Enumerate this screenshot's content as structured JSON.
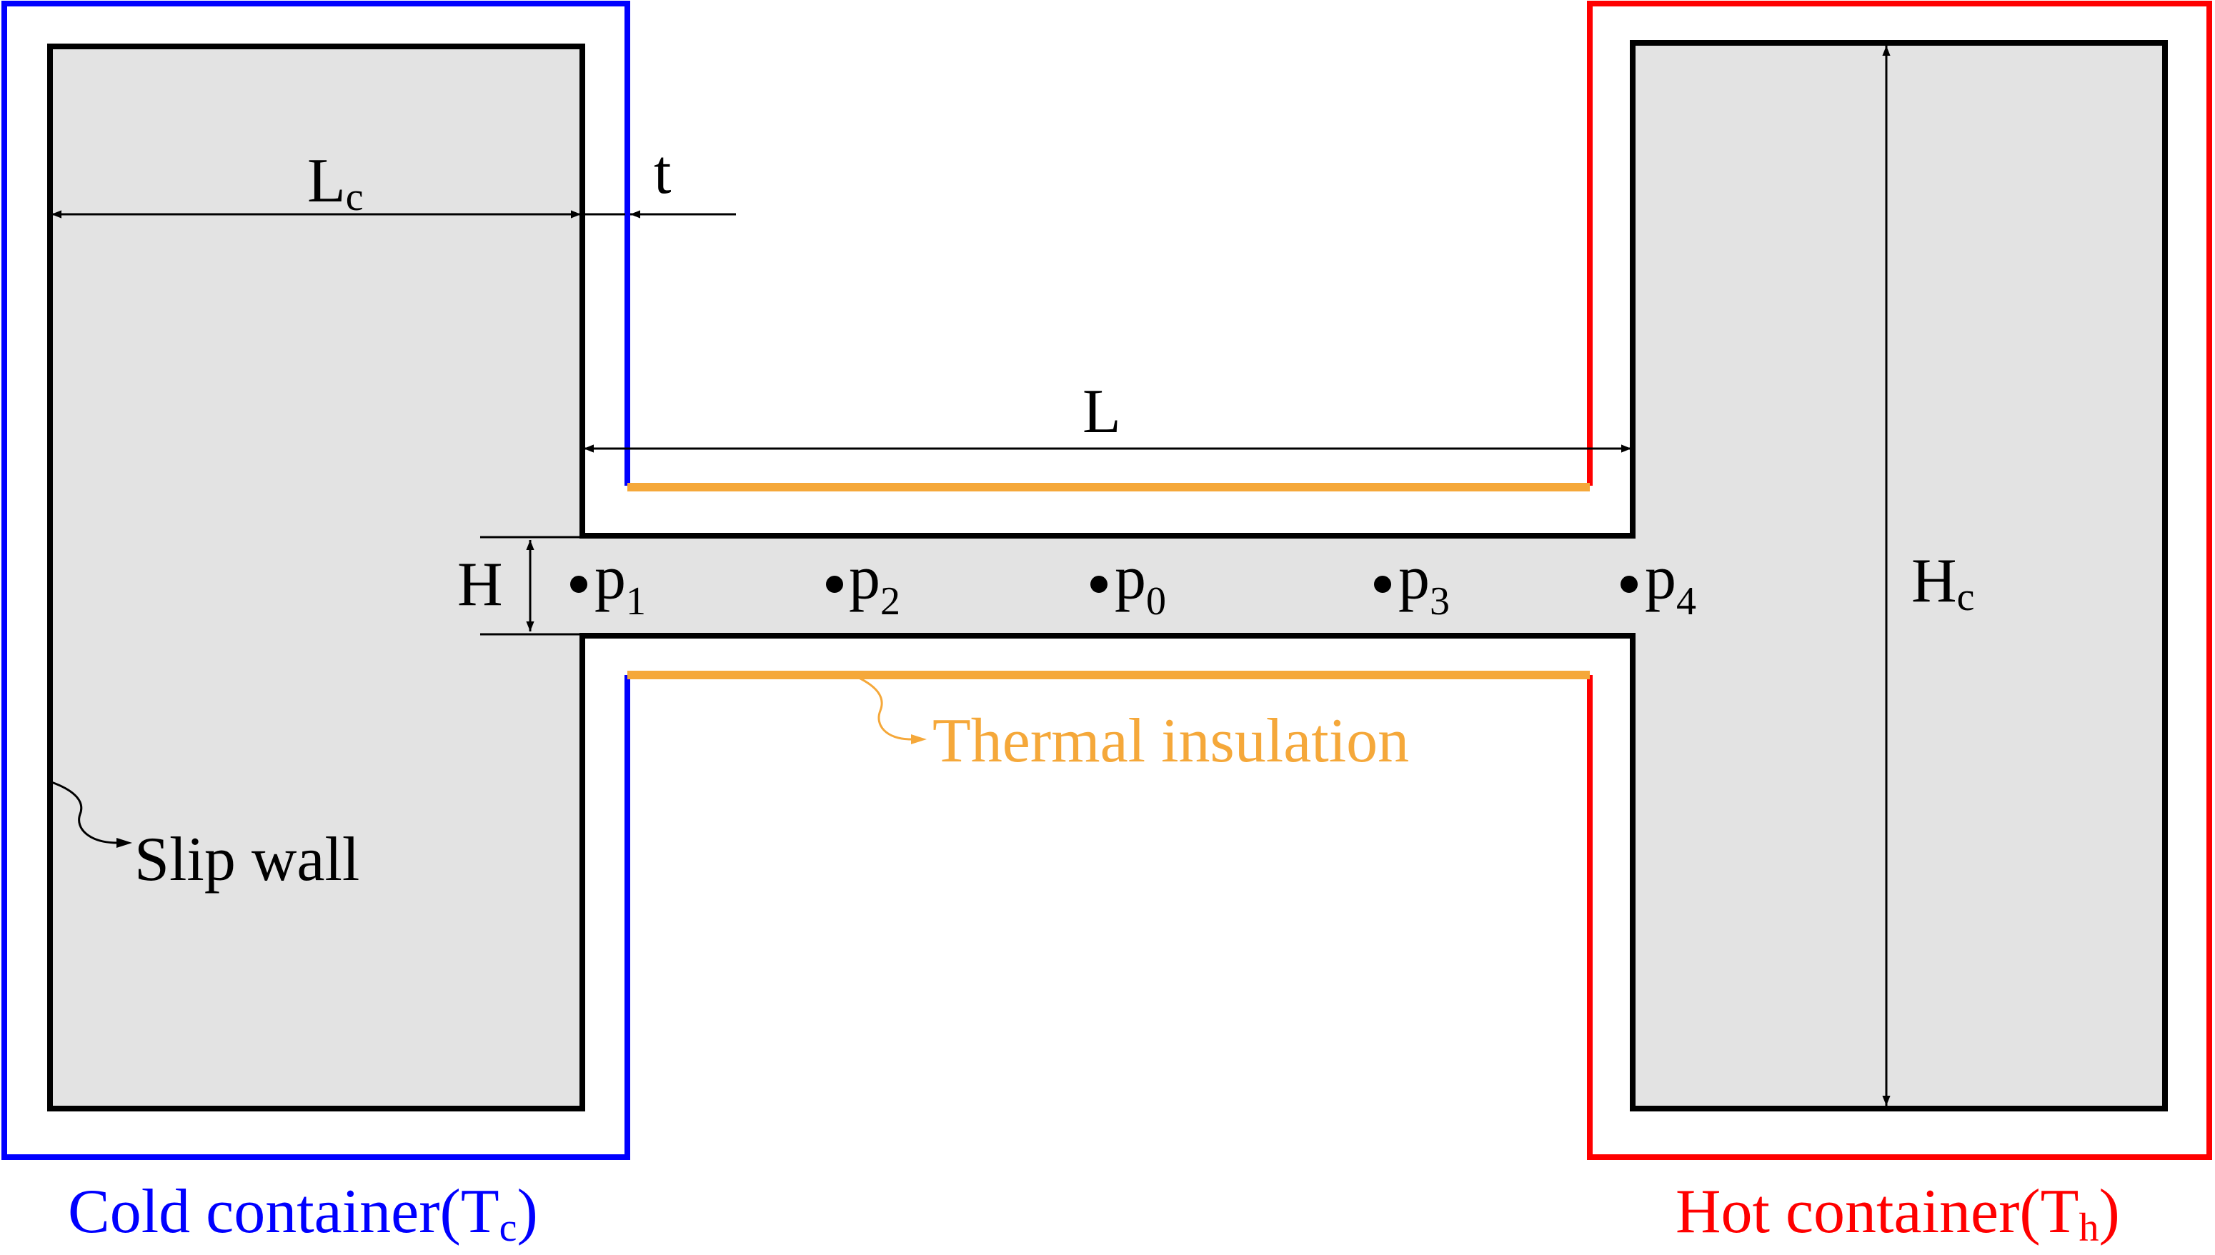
{
  "colors": {
    "cold": "#0000ff",
    "hot": "#ff0000",
    "insulation": "#f5a83a",
    "fluid": "#e3e3e3",
    "wall": "#000000"
  },
  "dimensions": {
    "lc": {
      "main": "L",
      "sub": "c"
    },
    "t": "t",
    "l": "L",
    "h": "H",
    "hc": {
      "main": "H",
      "sub": "c"
    }
  },
  "probes": [
    {
      "main": "p",
      "sub": "1"
    },
    {
      "main": "p",
      "sub": "2"
    },
    {
      "main": "p",
      "sub": "0"
    },
    {
      "main": "p",
      "sub": "3"
    },
    {
      "main": "p",
      "sub": "4"
    }
  ],
  "annotations": {
    "thermal_insulation": "Thermal insulation",
    "slip_wall": "Slip wall"
  },
  "captions": {
    "cold": {
      "main": "Cold container(T",
      "sub": "c",
      "close": ")"
    },
    "hot": {
      "main": "Hot container(T",
      "sub": "h",
      "close": ")"
    }
  }
}
